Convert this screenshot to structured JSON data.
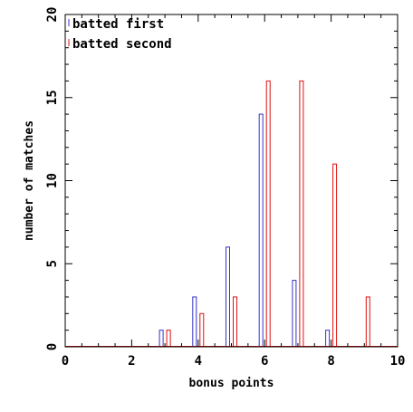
{
  "chart_data": {
    "type": "bar",
    "xlabel": "bonus points",
    "ylabel": "number of matches",
    "xlim": [
      0,
      10
    ],
    "ylim": [
      0,
      20
    ],
    "x_ticks": [
      0,
      2,
      4,
      6,
      8,
      10
    ],
    "y_ticks": [
      0,
      5,
      10,
      15,
      20
    ],
    "grid": false,
    "legend_position": "top-left",
    "categories": [
      0,
      1,
      2,
      3,
      4,
      5,
      6,
      7,
      8,
      9,
      10
    ],
    "series": [
      {
        "name": "batted first",
        "color": "#3333cc",
        "values": [
          0,
          0,
          0,
          1,
          3,
          6,
          14,
          4,
          1,
          0,
          0
        ]
      },
      {
        "name": "batted second",
        "color": "#dd1111",
        "values": [
          0,
          0,
          0,
          1,
          2,
          3,
          16,
          16,
          11,
          3,
          0
        ]
      }
    ]
  }
}
